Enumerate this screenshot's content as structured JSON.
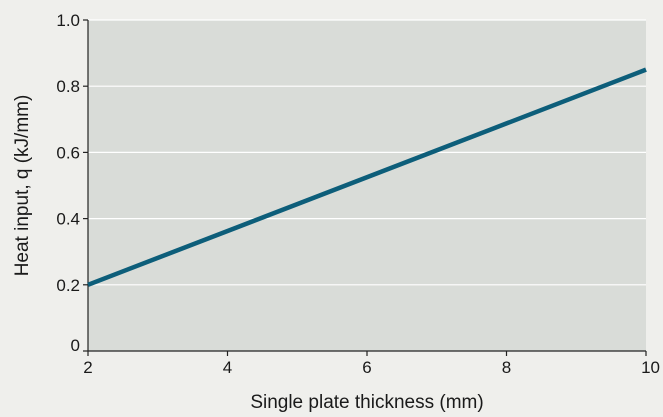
{
  "chart_data": {
    "type": "line",
    "title": "",
    "xlabel": "Single plate thickness (mm)",
    "ylabel": "Heat input, q (kJ/mm)",
    "xlim": [
      2,
      10
    ],
    "ylim": [
      0,
      1.0
    ],
    "x_ticks": [
      2,
      4,
      6,
      8,
      10
    ],
    "y_ticks": [
      0,
      0.2,
      0.4,
      0.6,
      0.8,
      1.0
    ],
    "x_tick_labels": [
      "2",
      "4",
      "6",
      "8",
      "10"
    ],
    "y_tick_labels": [
      "0",
      "0.2",
      "0.4",
      "0.6",
      "0.8",
      "1.0"
    ],
    "grid": "horizontal",
    "series": [
      {
        "x": [
          2,
          10
        ],
        "y": [
          0.2,
          0.85
        ]
      }
    ]
  },
  "colors": {
    "page_background": "#efefec",
    "plot_background": "#d9dcd8",
    "gridline": "#ffffff",
    "line": "#0d5e7a"
  }
}
